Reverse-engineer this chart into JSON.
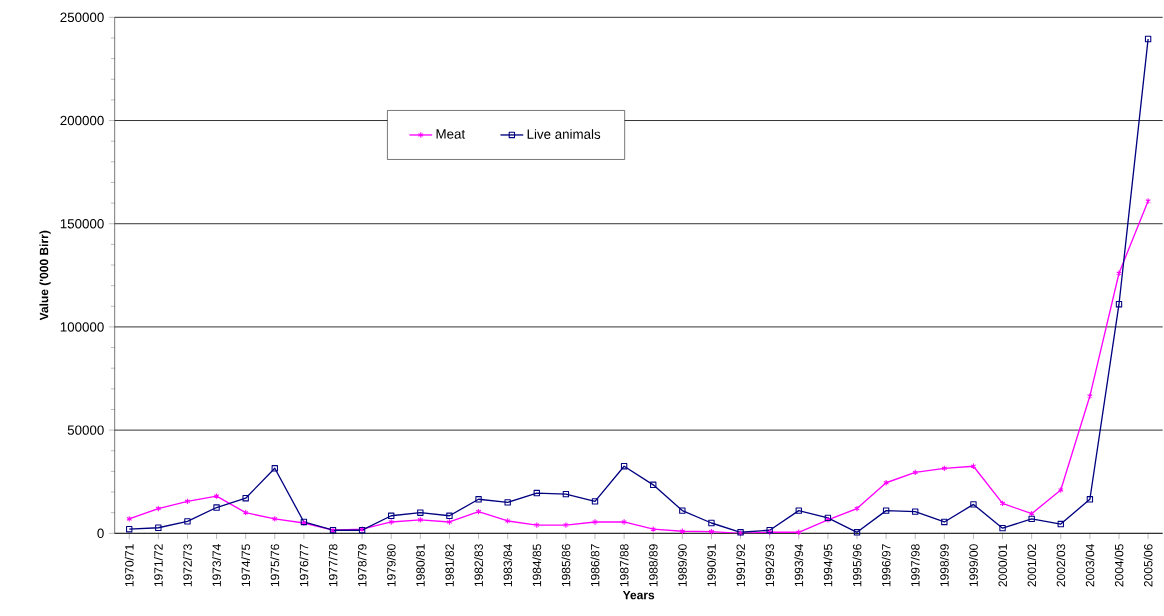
{
  "chart_data": {
    "type": "line",
    "xlabel": "Years",
    "ylabel": "Value ('000 Birr)",
    "categories": [
      "1970/71",
      "1971/72",
      "1972/73",
      "1973/74",
      "1974/75",
      "1975/76",
      "1976/77",
      "1977/78",
      "1978/79",
      "1979/80",
      "1980/81",
      "1981/82",
      "1982/83",
      "1983/84",
      "1984/85",
      "1985/86",
      "1986/87",
      "1987/88",
      "1988/89",
      "1989/90",
      "1990/91",
      "1991/92",
      "1992/93",
      "1993/94",
      "1994/95",
      "1995/96",
      "1996/97",
      "1997/98",
      "1998/99",
      "1999/00",
      "2000/01",
      "2001/02",
      "2002/03",
      "2003/04",
      "2004/05",
      "2005/06"
    ],
    "series": [
      {
        "name": "Meat",
        "color": "#ff00ff",
        "marker": "cross",
        "values": [
          7000,
          12000,
          15500,
          18000,
          10000,
          7000,
          5000,
          1500,
          2000,
          5500,
          6500,
          5500,
          10500,
          6000,
          4000,
          4000,
          5500,
          5500,
          2000,
          1000,
          800,
          0,
          500,
          500,
          6500,
          12000,
          24500,
          29500,
          31500,
          32500,
          14500,
          9500,
          21000,
          66500,
          126000,
          161000
        ]
      },
      {
        "name": "Live animals",
        "color": "#000080",
        "marker": "square",
        "values": [
          2000,
          2700,
          5800,
          12500,
          17000,
          31500,
          5500,
          1500,
          1500,
          8500,
          10000,
          8500,
          16500,
          15000,
          19500,
          19000,
          15500,
          32500,
          23500,
          11000,
          5000,
          500,
          1500,
          11000,
          7500,
          500,
          11000,
          10500,
          5500,
          14000,
          2500,
          7000,
          4500,
          16500,
          111000,
          239500
        ]
      }
    ],
    "ylim": [
      0,
      250000
    ],
    "yticks": [
      0,
      50000,
      100000,
      150000,
      200000,
      250000
    ],
    "grid": "y",
    "legend": "top"
  }
}
